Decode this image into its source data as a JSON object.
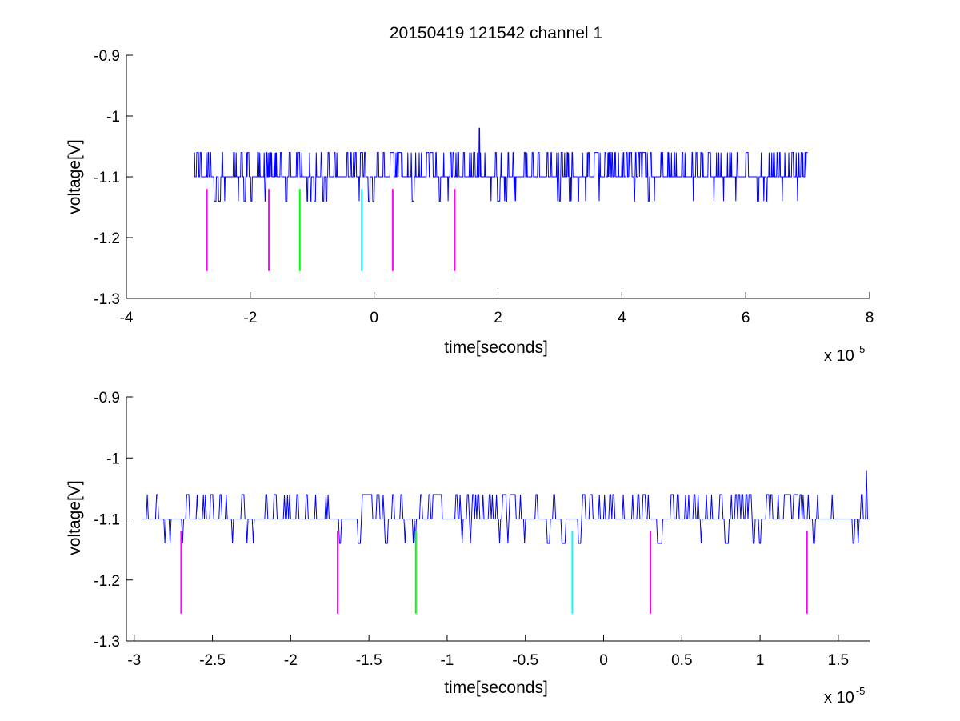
{
  "chart_data": [
    {
      "type": "line",
      "title": "20150419 121542 channel 1",
      "xlabel": "time[seconds]",
      "ylabel": "voltage[V]",
      "x_scale_label": "x 10",
      "x_scale_exponent": "-5",
      "xlim": [
        -4,
        8
      ],
      "ylim": [
        -1.3,
        -0.9
      ],
      "x_ticks": [
        -4,
        -2,
        0,
        2,
        4,
        6,
        8
      ],
      "x_tick_labels": [
        "-4",
        "-2",
        "0",
        "2",
        "4",
        "6",
        "8"
      ],
      "y_ticks": [
        -1.3,
        -1.2,
        -1.1,
        -1.0,
        -0.9
      ],
      "y_tick_labels": [
        "-1.3",
        "-1.2",
        "-1.1",
        "-1",
        "-0.9"
      ],
      "grid": false,
      "signal": {
        "color": "#0000ff",
        "x_start": -2.9,
        "x_end": 7.0,
        "baseline": -1.1,
        "upper_level": -1.06,
        "lower_level": -1.14,
        "spike": {
          "x": 1.7,
          "y": -1.02
        }
      },
      "markers": [
        {
          "x": -2.7,
          "y_top": -1.12,
          "y_bottom": -1.255,
          "color": "#ff00ff"
        },
        {
          "x": -1.7,
          "y_top": -1.12,
          "y_bottom": -1.255,
          "color": "#ff00ff"
        },
        {
          "x": -1.2,
          "y_top": -1.12,
          "y_bottom": -1.255,
          "color": "#00ff00"
        },
        {
          "x": -0.2,
          "y_top": -1.12,
          "y_bottom": -1.255,
          "color": "#00ffff"
        },
        {
          "x": 0.3,
          "y_top": -1.12,
          "y_bottom": -1.255,
          "color": "#ff00ff"
        },
        {
          "x": 1.3,
          "y_top": -1.12,
          "y_bottom": -1.255,
          "color": "#ff00ff"
        }
      ]
    },
    {
      "type": "line",
      "title": "",
      "xlabel": "time[seconds]",
      "ylabel": "voltage[V]",
      "x_scale_label": "x 10",
      "x_scale_exponent": "-5",
      "xlim": [
        -3.05,
        1.7
      ],
      "ylim": [
        -1.3,
        -0.9
      ],
      "x_ticks": [
        -3,
        -2.5,
        -2,
        -1.5,
        -1,
        -0.5,
        0,
        0.5,
        1,
        1.5
      ],
      "x_tick_labels": [
        "-3",
        "-2.5",
        "-2",
        "-1.5",
        "-1",
        "-0.5",
        "0",
        "0.5",
        "1",
        "1.5"
      ],
      "y_ticks": [
        -1.3,
        -1.2,
        -1.1,
        -1.0,
        -0.9
      ],
      "y_tick_labels": [
        "-1.3",
        "-1.2",
        "-1.1",
        "-1",
        "-0.9"
      ],
      "grid": false,
      "signal": {
        "color": "#0000ff",
        "x_start": -2.95,
        "x_end": 1.7,
        "baseline": -1.1,
        "upper_level": -1.06,
        "lower_level": -1.14,
        "spike": {
          "x": 1.68,
          "y": -1.02
        }
      },
      "markers": [
        {
          "x": -2.7,
          "y_top": -1.12,
          "y_bottom": -1.255,
          "color": "#ff00ff"
        },
        {
          "x": -1.7,
          "y_top": -1.12,
          "y_bottom": -1.255,
          "color": "#ff00ff"
        },
        {
          "x": -1.2,
          "y_top": -1.12,
          "y_bottom": -1.255,
          "color": "#00ff00"
        },
        {
          "x": -0.2,
          "y_top": -1.12,
          "y_bottom": -1.255,
          "color": "#00ffff"
        },
        {
          "x": 0.3,
          "y_top": -1.12,
          "y_bottom": -1.255,
          "color": "#ff00ff"
        },
        {
          "x": 1.3,
          "y_top": -1.12,
          "y_bottom": -1.255,
          "color": "#ff00ff"
        }
      ]
    }
  ]
}
